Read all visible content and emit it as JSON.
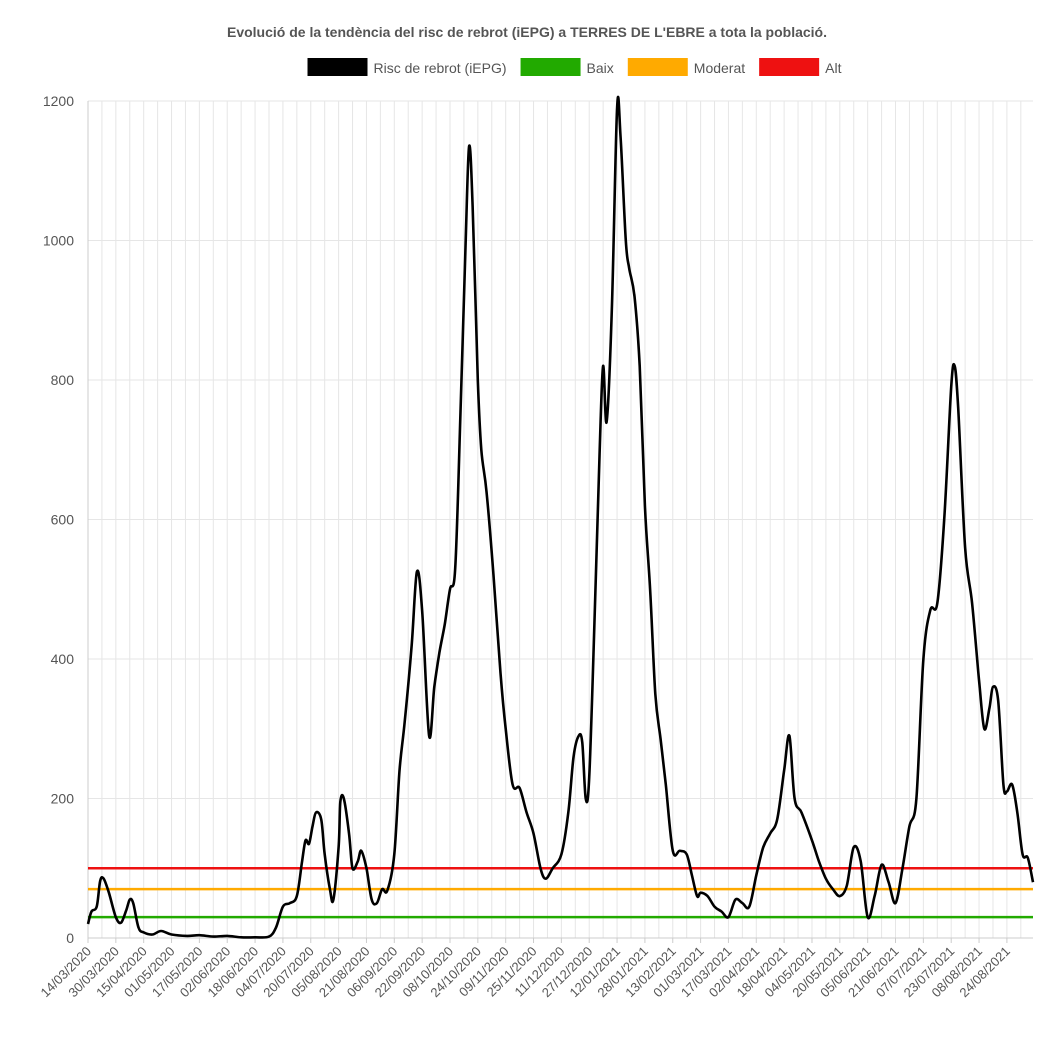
{
  "chart_data": {
    "type": "line",
    "title": "Evolució de la tendència del risc de rebrot (iEPG) a TERRES DE L'EBRE a tota la població.",
    "xlabel": "",
    "ylabel": "",
    "ylim": [
      0,
      1200
    ],
    "yticks": [
      0,
      200,
      400,
      600,
      800,
      1000,
      1200
    ],
    "xticks": [
      "14/03/2020",
      "30/03/2020",
      "15/04/2020",
      "01/05/2020",
      "17/05/2020",
      "02/06/2020",
      "18/06/2020",
      "04/07/2020",
      "20/07/2020",
      "05/08/2020",
      "21/08/2020",
      "06/09/2020",
      "22/09/2020",
      "08/10/2020",
      "24/10/2020",
      "09/11/2020",
      "25/11/2020",
      "11/12/2020",
      "27/12/2020",
      "12/01/2021",
      "28/01/2021",
      "13/02/2021",
      "01/03/2021",
      "17/03/2021",
      "02/04/2021",
      "18/04/2021",
      "04/05/2021",
      "20/05/2021",
      "05/06/2021",
      "21/06/2021",
      "07/07/2021",
      "23/07/2021",
      "08/08/2021",
      "24/08/2021"
    ],
    "grid": true,
    "legend_position": "top",
    "legend": [
      {
        "name": "Risc de rebrot (iEPG)",
        "color": "#000000"
      },
      {
        "name": "Baix",
        "color": "#22aa00"
      },
      {
        "name": "Moderat",
        "color": "#ffaa00"
      },
      {
        "name": "Alt",
        "color": "#ee1111"
      }
    ],
    "series": [
      {
        "name": "Risc de rebrot (iEPG)",
        "color": "#000000",
        "points": [
          [
            "14/03/2020",
            20
          ],
          [
            "16/03/2020",
            38
          ],
          [
            "19/03/2020",
            45
          ],
          [
            "21/03/2020",
            82
          ],
          [
            "23/03/2020",
            85
          ],
          [
            "26/03/2020",
            65
          ],
          [
            "30/03/2020",
            30
          ],
          [
            "02/04/2020",
            22
          ],
          [
            "05/04/2020",
            40
          ],
          [
            "07/04/2020",
            55
          ],
          [
            "09/04/2020",
            50
          ],
          [
            "12/04/2020",
            15
          ],
          [
            "15/04/2020",
            8
          ],
          [
            "20/04/2020",
            5
          ],
          [
            "25/04/2020",
            10
          ],
          [
            "01/05/2020",
            5
          ],
          [
            "10/05/2020",
            3
          ],
          [
            "17/05/2020",
            4
          ],
          [
            "25/05/2020",
            2
          ],
          [
            "02/06/2020",
            3
          ],
          [
            "10/06/2020",
            1
          ],
          [
            "18/06/2020",
            1
          ],
          [
            "26/06/2020",
            2
          ],
          [
            "30/06/2020",
            15
          ],
          [
            "04/07/2020",
            45
          ],
          [
            "08/07/2020",
            50
          ],
          [
            "12/07/2020",
            60
          ],
          [
            "15/07/2020",
            110
          ],
          [
            "17/07/2020",
            140
          ],
          [
            "19/07/2020",
            135
          ],
          [
            "21/07/2020",
            160
          ],
          [
            "23/07/2020",
            180
          ],
          [
            "26/07/2020",
            170
          ],
          [
            "28/07/2020",
            120
          ],
          [
            "31/07/2020",
            70
          ],
          [
            "02/08/2020",
            55
          ],
          [
            "05/08/2020",
            130
          ],
          [
            "06/08/2020",
            195
          ],
          [
            "08/08/2020",
            200
          ],
          [
            "11/08/2020",
            150
          ],
          [
            "13/08/2020",
            100
          ],
          [
            "16/08/2020",
            110
          ],
          [
            "18/08/2020",
            125
          ],
          [
            "21/08/2020",
            100
          ],
          [
            "24/08/2020",
            55
          ],
          [
            "27/08/2020",
            50
          ],
          [
            "30/08/2020",
            70
          ],
          [
            "02/09/2020",
            68
          ],
          [
            "06/09/2020",
            120
          ],
          [
            "09/09/2020",
            240
          ],
          [
            "12/09/2020",
            310
          ],
          [
            "16/09/2020",
            420
          ],
          [
            "19/09/2020",
            525
          ],
          [
            "22/09/2020",
            470
          ],
          [
            "26/09/2020",
            290
          ],
          [
            "29/09/2020",
            360
          ],
          [
            "02/10/2020",
            410
          ],
          [
            "05/10/2020",
            450
          ],
          [
            "08/10/2020",
            500
          ],
          [
            "11/10/2020",
            530
          ],
          [
            "14/10/2020",
            750
          ],
          [
            "17/10/2020",
            1000
          ],
          [
            "19/10/2020",
            1135
          ],
          [
            "21/10/2020",
            1050
          ],
          [
            "24/10/2020",
            800
          ],
          [
            "26/10/2020",
            700
          ],
          [
            "29/10/2020",
            640
          ],
          [
            "02/11/2020",
            520
          ],
          [
            "06/11/2020",
            380
          ],
          [
            "09/11/2020",
            300
          ],
          [
            "13/11/2020",
            220
          ],
          [
            "17/11/2020",
            215
          ],
          [
            "21/11/2020",
            180
          ],
          [
            "25/11/2020",
            150
          ],
          [
            "29/11/2020",
            100
          ],
          [
            "02/12/2020",
            85
          ],
          [
            "06/12/2020",
            100
          ],
          [
            "11/12/2020",
            120
          ],
          [
            "15/12/2020",
            180
          ],
          [
            "18/12/2020",
            260
          ],
          [
            "21/12/2020",
            290
          ],
          [
            "23/12/2020",
            280
          ],
          [
            "25/12/2020",
            200
          ],
          [
            "27/12/2020",
            230
          ],
          [
            "30/12/2020",
            450
          ],
          [
            "02/01/2021",
            700
          ],
          [
            "04/01/2021",
            820
          ],
          [
            "06/01/2021",
            740
          ],
          [
            "09/01/2021",
            900
          ],
          [
            "12/01/2021",
            1190
          ],
          [
            "14/01/2021",
            1150
          ],
          [
            "17/01/2021",
            1000
          ],
          [
            "19/01/2021",
            960
          ],
          [
            "22/01/2021",
            920
          ],
          [
            "25/01/2021",
            820
          ],
          [
            "28/01/2021",
            620
          ],
          [
            "31/01/2021",
            500
          ],
          [
            "03/02/2021",
            350
          ],
          [
            "06/02/2021",
            285
          ],
          [
            "09/02/2021",
            220
          ],
          [
            "13/02/2021",
            125
          ],
          [
            "17/02/2021",
            125
          ],
          [
            "21/02/2021",
            120
          ],
          [
            "24/02/2021",
            90
          ],
          [
            "27/02/2021",
            60
          ],
          [
            "01/03/2021",
            65
          ],
          [
            "05/03/2021",
            60
          ],
          [
            "09/03/2021",
            45
          ],
          [
            "13/03/2021",
            38
          ],
          [
            "17/03/2021",
            30
          ],
          [
            "21/03/2021",
            55
          ],
          [
            "25/03/2021",
            50
          ],
          [
            "29/03/2021",
            45
          ],
          [
            "02/04/2021",
            90
          ],
          [
            "06/04/2021",
            130
          ],
          [
            "10/04/2021",
            150
          ],
          [
            "14/04/2021",
            170
          ],
          [
            "18/04/2021",
            240
          ],
          [
            "21/04/2021",
            290
          ],
          [
            "24/04/2021",
            200
          ],
          [
            "28/04/2021",
            180
          ],
          [
            "04/05/2021",
            140
          ],
          [
            "08/05/2021",
            110
          ],
          [
            "12/05/2021",
            85
          ],
          [
            "16/05/2021",
            70
          ],
          [
            "20/05/2021",
            60
          ],
          [
            "24/05/2021",
            75
          ],
          [
            "28/05/2021",
            130
          ],
          [
            "01/06/2021",
            110
          ],
          [
            "05/06/2021",
            30
          ],
          [
            "09/06/2021",
            60
          ],
          [
            "13/06/2021",
            105
          ],
          [
            "17/06/2021",
            80
          ],
          [
            "21/06/2021",
            50
          ],
          [
            "25/06/2021",
            100
          ],
          [
            "29/06/2021",
            160
          ],
          [
            "03/07/2021",
            200
          ],
          [
            "07/07/2021",
            400
          ],
          [
            "11/07/2021",
            470
          ],
          [
            "15/07/2021",
            480
          ],
          [
            "19/07/2021",
            600
          ],
          [
            "23/07/2021",
            790
          ],
          [
            "25/07/2021",
            820
          ],
          [
            "27/07/2021",
            760
          ],
          [
            "31/07/2021",
            560
          ],
          [
            "04/08/2021",
            480
          ],
          [
            "08/08/2021",
            370
          ],
          [
            "11/08/2021",
            300
          ],
          [
            "14/08/2021",
            330
          ],
          [
            "16/08/2021",
            360
          ],
          [
            "19/08/2021",
            340
          ],
          [
            "22/08/2021",
            220
          ],
          [
            "24/08/2021",
            210
          ],
          [
            "27/08/2021",
            220
          ],
          [
            "30/08/2021",
            180
          ],
          [
            "02/09/2021",
            120
          ],
          [
            "05/09/2021",
            115
          ],
          [
            "08/09/2021",
            80
          ]
        ]
      },
      {
        "name": "Baix",
        "color": "#22aa00",
        "constant": 30
      },
      {
        "name": "Moderat",
        "color": "#ffaa00",
        "constant": 70
      },
      {
        "name": "Alt",
        "color": "#ee1111",
        "constant": 100
      }
    ]
  }
}
